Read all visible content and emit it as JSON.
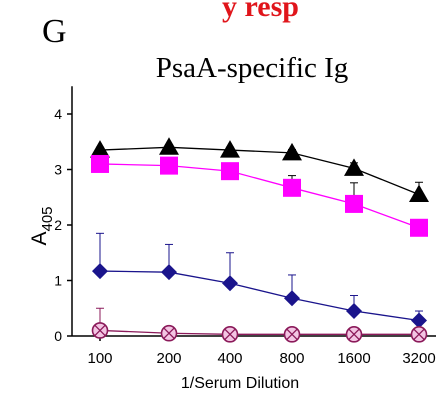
{
  "panel": {
    "letter": "G",
    "top_cut_text": "y resp"
  },
  "colors": {
    "accent_red": "#e0151b",
    "axis": "#000000"
  },
  "chart_data": {
    "type": "line",
    "title": "PsaA-specific Ig",
    "xlabel": "1/Serum Dilution",
    "ylabel_main": "A",
    "ylabel_sub": "405",
    "categories": [
      "100",
      "200",
      "400",
      "800",
      "1600",
      "3200"
    ],
    "ylim": [
      0,
      4.5
    ],
    "yticks": [
      0,
      1,
      2,
      3,
      4
    ],
    "grid": false,
    "legend": "none",
    "series": [
      {
        "marker": "triangle",
        "color": "#000000",
        "values": [
          3.35,
          3.4,
          3.35,
          3.3,
          3.02,
          2.55
        ],
        "errors": [
          0.05,
          0.05,
          0.05,
          0.06,
          0.1,
          0.22
        ]
      },
      {
        "marker": "square",
        "color": "#ff00ff",
        "values": [
          3.1,
          3.07,
          2.97,
          2.67,
          2.38,
          1.95
        ],
        "errors": [
          0.03,
          0.03,
          0.05,
          0.22,
          0.38,
          0.1
        ]
      },
      {
        "marker": "diamond",
        "color": "#1a148c",
        "values": [
          1.17,
          1.15,
          0.95,
          0.68,
          0.45,
          0.28
        ],
        "errors": [
          0.68,
          0.5,
          0.55,
          0.42,
          0.28,
          0.17
        ]
      },
      {
        "marker": "circle-x",
        "color": "#8b1a5a",
        "values": [
          0.1,
          0.05,
          0.03,
          0.03,
          0.03,
          0.03
        ],
        "errors": [
          0.4,
          0.05,
          0.02,
          0.02,
          0.02,
          0.02
        ]
      }
    ]
  }
}
